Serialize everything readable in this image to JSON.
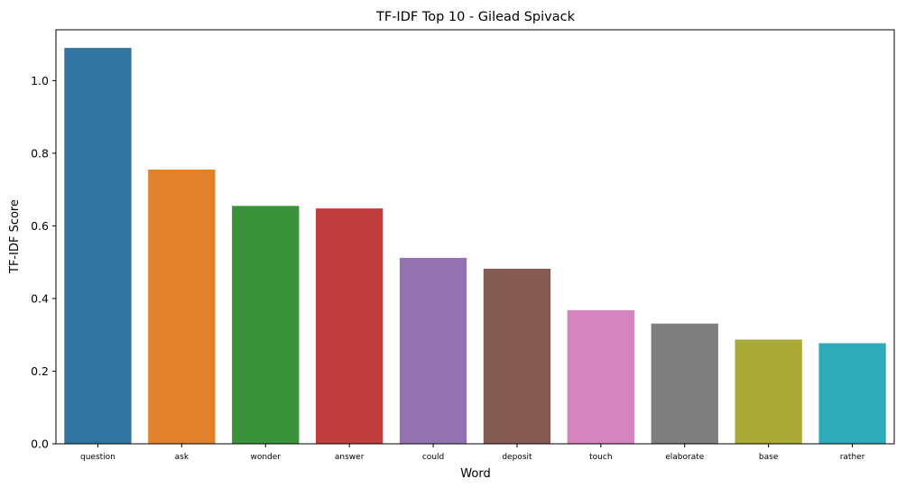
{
  "chart_data": {
    "type": "bar",
    "title": "TF-IDF Top 10 - Gilead Spivack",
    "xlabel": "Word",
    "ylabel": "TF-IDF Score",
    "categories": [
      "question",
      "ask",
      "wonder",
      "answer",
      "could",
      "deposit",
      "touch",
      "elaborate",
      "base",
      "rather"
    ],
    "values": [
      1.09,
      0.755,
      0.655,
      0.648,
      0.512,
      0.482,
      0.368,
      0.331,
      0.287,
      0.277
    ],
    "colors": [
      "#3274a1",
      "#e1812c",
      "#3a923a",
      "#c03d3e",
      "#9372b2",
      "#845b53",
      "#d684bd",
      "#7f7f7f",
      "#a9aa35",
      "#2eabb8"
    ],
    "ylim": [
      0,
      1.14
    ],
    "yticks": [
      "0.0",
      "0.2",
      "0.4",
      "0.6",
      "0.8",
      "1.0"
    ],
    "grid": false,
    "legend": "none"
  }
}
